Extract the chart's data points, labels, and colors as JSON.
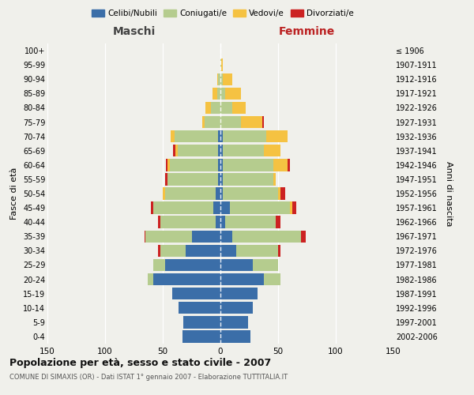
{
  "age_groups": [
    "0-4",
    "5-9",
    "10-14",
    "15-19",
    "20-24",
    "25-29",
    "30-34",
    "35-39",
    "40-44",
    "45-49",
    "50-54",
    "55-59",
    "60-64",
    "65-69",
    "70-74",
    "75-79",
    "80-84",
    "85-89",
    "90-94",
    "95-99",
    "100+"
  ],
  "birth_years": [
    "2002-2006",
    "1997-2001",
    "1992-1996",
    "1987-1991",
    "1982-1986",
    "1977-1981",
    "1972-1976",
    "1967-1971",
    "1962-1966",
    "1957-1961",
    "1952-1956",
    "1947-1951",
    "1942-1946",
    "1937-1941",
    "1932-1936",
    "1927-1931",
    "1922-1926",
    "1917-1921",
    "1912-1916",
    "1907-1911",
    "≤ 1906"
  ],
  "male_celibi": [
    33,
    32,
    36,
    42,
    58,
    48,
    30,
    25,
    4,
    6,
    4,
    2,
    2,
    2,
    2,
    0,
    0,
    0,
    0,
    0,
    0
  ],
  "male_coniugati": [
    0,
    0,
    0,
    0,
    5,
    10,
    22,
    40,
    48,
    52,
    44,
    44,
    42,
    35,
    38,
    14,
    8,
    3,
    2,
    0,
    0
  ],
  "male_vedovi": [
    0,
    0,
    0,
    0,
    0,
    0,
    0,
    0,
    0,
    0,
    2,
    0,
    2,
    2,
    3,
    2,
    5,
    4,
    1,
    0,
    0
  ],
  "male_divorziati": [
    0,
    0,
    0,
    0,
    0,
    0,
    2,
    1,
    2,
    2,
    0,
    2,
    1,
    2,
    0,
    0,
    0,
    0,
    0,
    0,
    0
  ],
  "female_celibi": [
    26,
    24,
    28,
    32,
    38,
    28,
    14,
    10,
    4,
    8,
    2,
    2,
    2,
    2,
    2,
    0,
    0,
    0,
    0,
    0,
    0
  ],
  "female_coniugati": [
    0,
    0,
    0,
    0,
    14,
    22,
    36,
    60,
    44,
    52,
    48,
    44,
    44,
    36,
    38,
    18,
    10,
    4,
    2,
    1,
    0
  ],
  "female_vedovi": [
    0,
    0,
    0,
    0,
    0,
    0,
    0,
    0,
    0,
    2,
    2,
    2,
    12,
    14,
    18,
    18,
    12,
    14,
    8,
    1,
    0
  ],
  "female_divorziati": [
    0,
    0,
    0,
    0,
    0,
    0,
    2,
    4,
    4,
    4,
    4,
    0,
    2,
    0,
    0,
    2,
    0,
    0,
    0,
    0,
    0
  ],
  "color_celibi": "#3b6ea8",
  "color_coniugati": "#b5cc8e",
  "color_vedovi": "#f5c242",
  "color_divorziati": "#cc2222",
  "xlabel_left": "Maschi",
  "xlabel_right": "Femmine",
  "ylabel_left": "Fasce di età",
  "ylabel_right": "Anni di nascita",
  "title": "Popolazione per età, sesso e stato civile - 2007",
  "subtitle": "COMUNE DI SIMAXIS (OR) - Dati ISTAT 1° gennaio 2007 - Elaborazione TUTTITALIA.IT",
  "bg_color": "#f0f0eb",
  "xlim": 150
}
